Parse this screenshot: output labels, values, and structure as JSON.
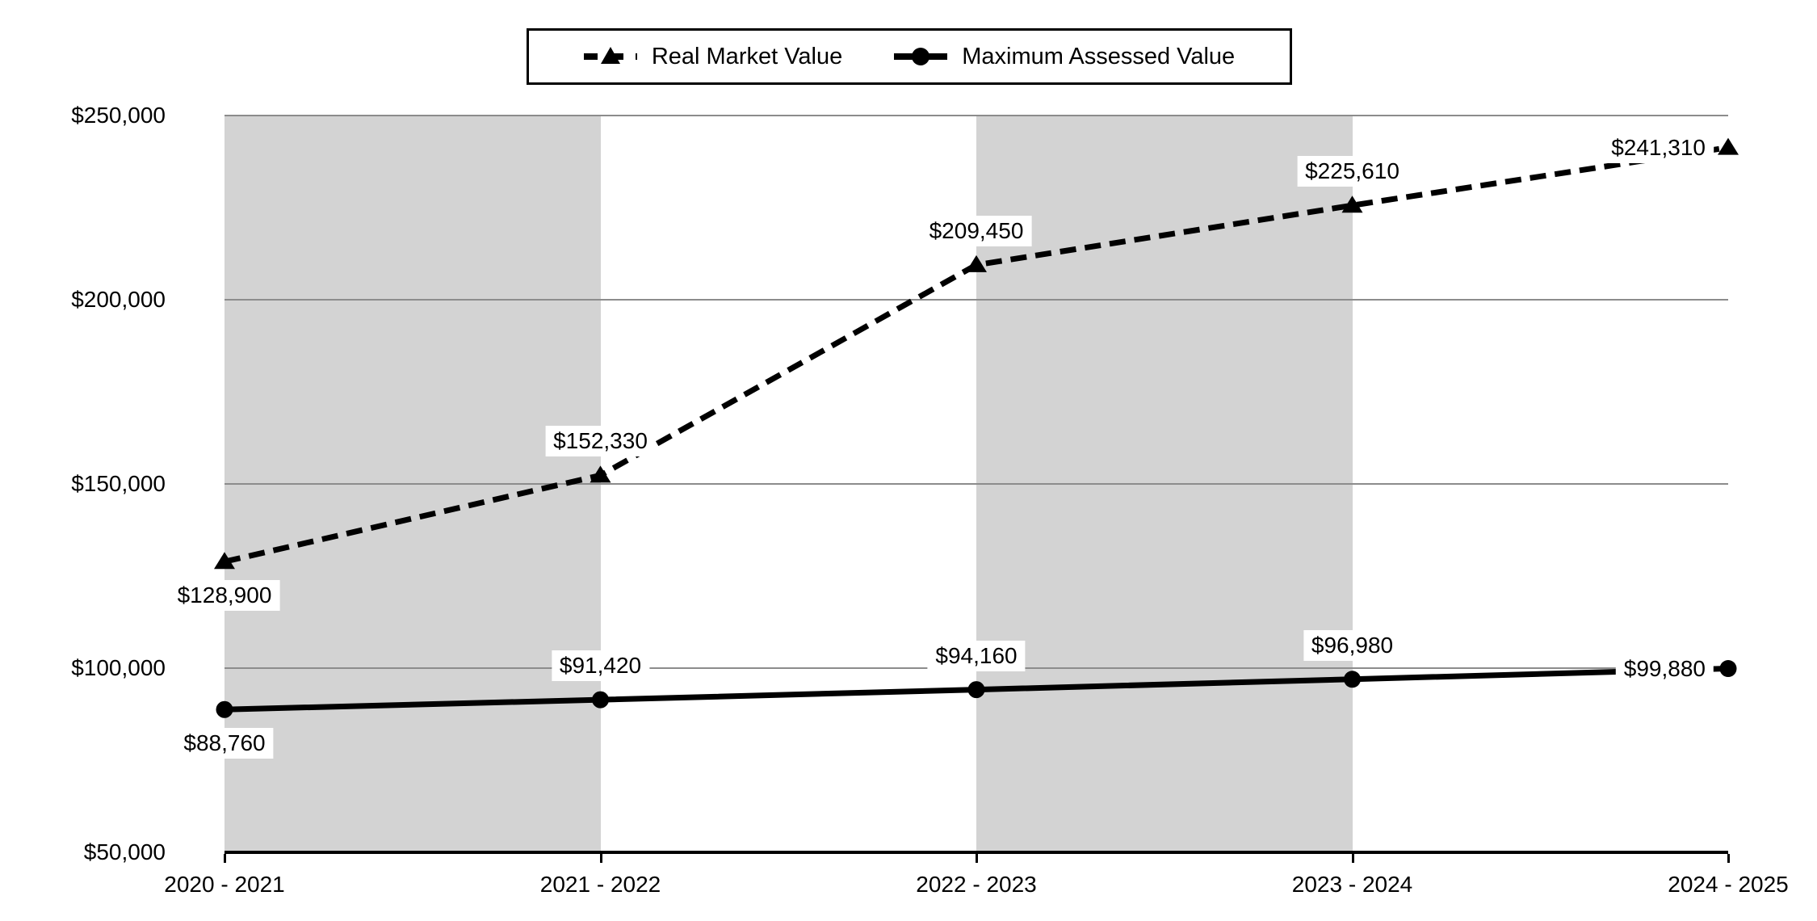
{
  "chart_data": {
    "type": "line",
    "title": "",
    "xlabel": "",
    "ylabel": "",
    "categories": [
      "2020 - 2021",
      "2021 - 2022",
      "2022 - 2023",
      "2023 - 2024",
      "2024 - 2025"
    ],
    "series": [
      {
        "name": "Real Market Value",
        "line_style": "dashed",
        "marker": "triangle",
        "color": "#000000",
        "values": [
          128900,
          152330,
          209450,
          225610,
          241310
        ],
        "data_labels": [
          "$128,900",
          "$152,330",
          "$209,450",
          "$225,610",
          "$241,310"
        ],
        "label_placements": [
          "below",
          "above",
          "above",
          "above",
          "left"
        ]
      },
      {
        "name": "Maximum Assessed Value",
        "line_style": "solid",
        "marker": "circle",
        "color": "#000000",
        "values": [
          88760,
          91420,
          94160,
          96980,
          99880
        ],
        "data_labels": [
          "$88,760",
          "$91,420",
          "$94,160",
          "$96,980",
          "$99,880"
        ],
        "label_placements": [
          "below",
          "above",
          "above",
          "above",
          "left"
        ]
      }
    ],
    "ylim": [
      50000,
      250000
    ],
    "ytick_interval": 50000,
    "ytick_labels": [
      "$50,000",
      "$100,000",
      "$150,000",
      "$200,000",
      "$250,000"
    ],
    "legend_position": "top",
    "grid": true,
    "shaded_bands": [
      [
        0,
        1
      ],
      [
        2,
        3
      ]
    ],
    "colors": {
      "series": "#000000",
      "band": "#d3d3d3",
      "gridline": "#8c8c8c",
      "axis": "#000000",
      "label_bg": "#ffffff",
      "text": "#000000"
    }
  }
}
